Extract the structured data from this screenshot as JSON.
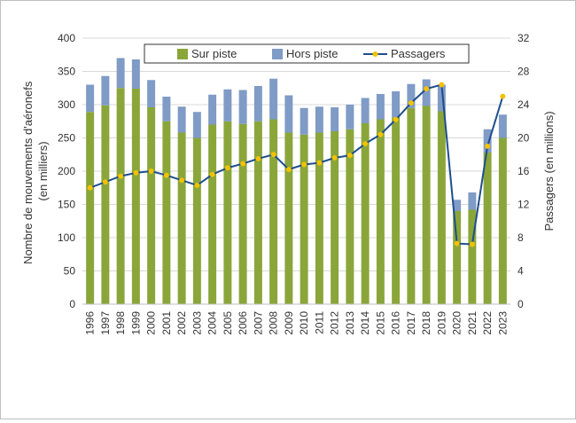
{
  "chart_data": {
    "type": "bar",
    "stacked": true,
    "categories": [
      "1996",
      "1997",
      "1998",
      "1999",
      "2000",
      "2001",
      "2002",
      "2003",
      "2004",
      "2005",
      "2006",
      "2007",
      "2008",
      "2009",
      "2010",
      "2011",
      "2012",
      "2013",
      "2014",
      "2015",
      "2016",
      "2017",
      "2018",
      "2019",
      "2020",
      "2021",
      "2022",
      "2023"
    ],
    "series": [
      {
        "name": "Sur piste",
        "axis": "left",
        "color": "#8aa63a",
        "values": [
          289,
          299,
          325,
          324,
          296,
          275,
          258,
          250,
          270,
          275,
          271,
          275,
          278,
          258,
          255,
          258,
          260,
          263,
          272,
          278,
          281,
          295,
          298,
          290,
          140,
          142,
          228,
          250
        ]
      },
      {
        "name": "Hors piste",
        "axis": "left",
        "color": "#7f9bc6",
        "values": [
          41,
          44,
          45,
          44,
          41,
          37,
          39,
          39,
          45,
          48,
          51,
          53,
          61,
          56,
          40,
          39,
          36,
          37,
          38,
          38,
          39,
          36,
          40,
          40,
          17,
          26,
          35,
          35
        ]
      },
      {
        "name": "Passagers",
        "type": "line",
        "axis": "right",
        "color": "#1f4e8c",
        "marker_color": "#f2c200",
        "values": [
          14.0,
          14.7,
          15.4,
          15.8,
          16.0,
          15.5,
          14.9,
          14.3,
          15.6,
          16.4,
          16.9,
          17.5,
          18.0,
          16.2,
          16.8,
          17.0,
          17.6,
          17.9,
          19.3,
          20.4,
          22.2,
          24.2,
          25.9,
          26.4,
          7.3,
          7.2,
          19.0,
          25.0
        ]
      }
    ],
    "y_left": {
      "label_line1": "Nombre de mouvements d'aéronefs",
      "label_line2": "(en milliers)",
      "min": 0,
      "max": 400,
      "step": 50
    },
    "y_right": {
      "label": "Passagers (en millions)",
      "min": 0,
      "max": 32,
      "step": 4
    },
    "legend": {
      "placement": "top",
      "items": [
        "Sur piste",
        "Hors piste",
        "Passagers"
      ]
    },
    "grid": "horizontal"
  }
}
